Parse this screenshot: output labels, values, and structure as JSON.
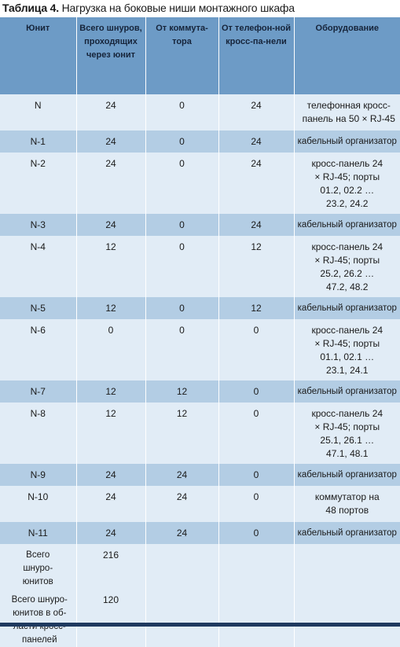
{
  "caption": {
    "label": "Таблица 4.",
    "text": "Нагрузка на боковые ниши монтажного шкафа"
  },
  "headers": [
    "Юнит",
    "Всего шнуров, проходящих через юнит",
    "От коммута-тора",
    "От телефон-ной кросс-па-нели",
    "Оборудование"
  ],
  "rows": [
    {
      "unit": "N",
      "total": "24",
      "from_switch": "0",
      "from_phone": "24",
      "equipment": "телефонная кросс-панель на 50 × RJ-45"
    },
    {
      "unit": "N-1",
      "total": "24",
      "from_switch": "0",
      "from_phone": "24",
      "equipment": "кабельный организатор"
    },
    {
      "unit": "N-2",
      "total": "24",
      "from_switch": "0",
      "from_phone": "24",
      "equipment": "кросс-панель 24 × RJ-45; порты 01.2, 02.2 … 23.2, 24.2"
    },
    {
      "unit": "N-3",
      "total": "24",
      "from_switch": "0",
      "from_phone": "24",
      "equipment": "кабельный организатор"
    },
    {
      "unit": "N-4",
      "total": "12",
      "from_switch": "0",
      "from_phone": "12",
      "equipment": "кросс-панель 24 × RJ-45; порты 25.2, 26.2 … 47.2, 48.2"
    },
    {
      "unit": "N-5",
      "total": "12",
      "from_switch": "0",
      "from_phone": "12",
      "equipment": "кабельный организатор"
    },
    {
      "unit": "N-6",
      "total": "0",
      "from_switch": "0",
      "from_phone": "0",
      "equipment": "кросс-панель 24 × RJ-45; порты 01.1, 02.1 … 23.1, 24.1"
    },
    {
      "unit": "N-7",
      "total": "12",
      "from_switch": "12",
      "from_phone": "0",
      "equipment": "кабельный организатор"
    },
    {
      "unit": "N-8",
      "total": "12",
      "from_switch": "12",
      "from_phone": "0",
      "equipment": "кросс-панель 24 × RJ-45; порты 25.1, 26.1 … 47.1, 48.1"
    },
    {
      "unit": "N-9",
      "total": "24",
      "from_switch": "24",
      "from_phone": "0",
      "equipment": "кабельный организатор"
    },
    {
      "unit": "N-10",
      "total": "24",
      "from_switch": "24",
      "from_phone": "0",
      "equipment": "коммутатор на 48 портов"
    },
    {
      "unit": "N-11",
      "total": "24",
      "from_switch": "24",
      "from_phone": "0",
      "equipment": "кабельный организатор"
    }
  ],
  "summary": [
    {
      "label": "Всего шнуро-юнитов",
      "value": "216"
    },
    {
      "label": "Всего шнуро-юнитов в об-ласти кросс-панелей",
      "value": "120"
    }
  ]
}
